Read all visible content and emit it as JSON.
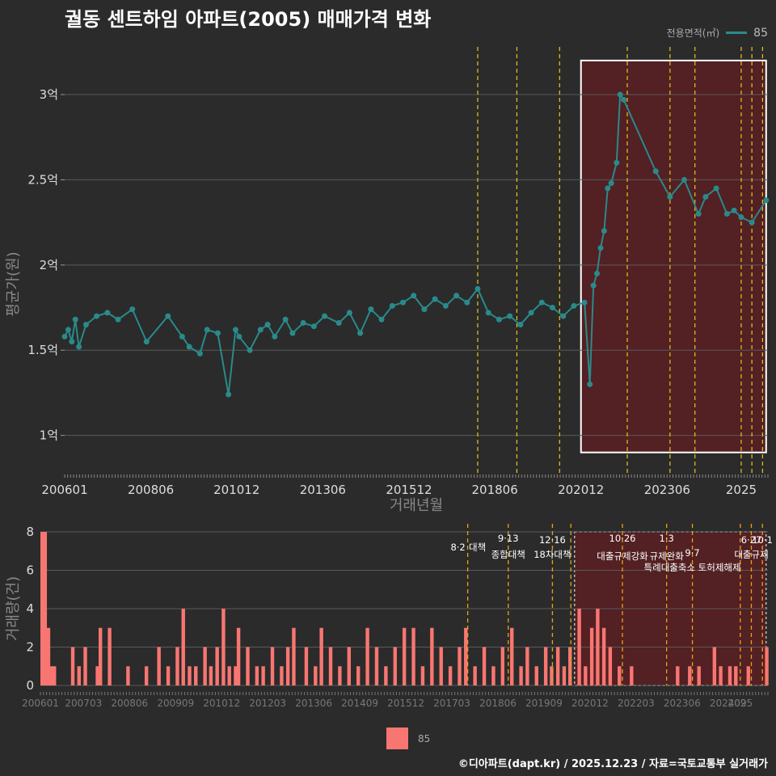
{
  "title": "궐동 센트하임 아파트(2005) 매매가격 변화",
  "legend": {
    "label": "전용면적(㎡)",
    "value": "85"
  },
  "footer": "©디아파트(dapt.kr) / 2025.12.23 / 자료=국토교통부 실거래가",
  "colors": {
    "line": "#2a8a8a",
    "bar": "#f87671",
    "highlight": "#5a1f22",
    "policy": "#e6c619"
  },
  "chart_data": [
    {
      "type": "line",
      "title": "궐동 센트하임 아파트(2005) 매매가격 변화",
      "xlabel": "거래년월",
      "ylabel": "평균가(원)",
      "xlim": [
        2006.0,
        2025.75
      ],
      "ylim": [
        0.78,
        3.28
      ],
      "yticks": [
        {
          "value": 1.0,
          "label": "1억"
        },
        {
          "value": 1.5,
          "label": "1.5억"
        },
        {
          "value": 2.0,
          "label": "2억"
        },
        {
          "value": 2.5,
          "label": "2.5억"
        },
        {
          "value": 3.0,
          "label": "3억"
        }
      ],
      "xticks": [
        {
          "value": 2006.0,
          "label": "200601"
        },
        {
          "value": 2008.42,
          "label": "200806"
        },
        {
          "value": 2010.83,
          "label": "201012"
        },
        {
          "value": 2013.25,
          "label": "201306"
        },
        {
          "value": 2015.67,
          "label": "201512"
        },
        {
          "value": 2018.08,
          "label": "201806"
        },
        {
          "value": 2020.5,
          "label": "202012"
        },
        {
          "value": 2022.92,
          "label": "202306"
        },
        {
          "value": 2025.0,
          "label": "2025"
        }
      ],
      "highlight_range": [
        2020.5,
        2025.7
      ],
      "policy_lines": [
        2017.6,
        2018.7,
        2019.9,
        2021.8,
        2023.0,
        2023.7,
        2025.0,
        2025.3,
        2025.6
      ],
      "series": [
        {
          "name": "85",
          "x": [
            2006.0,
            2006.1,
            2006.2,
            2006.3,
            2006.4,
            2006.6,
            2006.9,
            2007.2,
            2007.5,
            2007.9,
            2008.3,
            2008.9,
            2009.3,
            2009.5,
            2009.8,
            2010.0,
            2010.3,
            2010.6,
            2010.8,
            2010.9,
            2011.2,
            2011.5,
            2011.7,
            2011.9,
            2012.2,
            2012.4,
            2012.7,
            2013.0,
            2013.3,
            2013.7,
            2014.0,
            2014.3,
            2014.6,
            2014.9,
            2015.2,
            2015.5,
            2015.8,
            2016.1,
            2016.4,
            2016.7,
            2017.0,
            2017.3,
            2017.6,
            2017.9,
            2018.2,
            2018.5,
            2018.8,
            2019.1,
            2019.4,
            2019.7,
            2020.0,
            2020.3,
            2020.6,
            2020.75,
            2020.85,
            2020.95,
            2021.05,
            2021.15,
            2021.25,
            2021.35,
            2021.5,
            2021.6,
            2021.7,
            2022.6,
            2023.0,
            2023.4,
            2023.8,
            2024.0,
            2024.3,
            2024.6,
            2024.8,
            2025.0,
            2025.3,
            2025.7
          ],
          "y": [
            1.58,
            1.62,
            1.55,
            1.68,
            1.52,
            1.65,
            1.7,
            1.72,
            1.68,
            1.74,
            1.55,
            1.7,
            1.58,
            1.52,
            1.48,
            1.62,
            1.6,
            1.24,
            1.62,
            1.58,
            1.5,
            1.62,
            1.65,
            1.58,
            1.68,
            1.6,
            1.66,
            1.64,
            1.7,
            1.66,
            1.72,
            1.6,
            1.74,
            1.68,
            1.76,
            1.78,
            1.82,
            1.74,
            1.8,
            1.76,
            1.82,
            1.78,
            1.86,
            1.72,
            1.68,
            1.7,
            1.65,
            1.72,
            1.78,
            1.75,
            1.7,
            1.76,
            1.78,
            1.3,
            1.88,
            1.95,
            2.1,
            2.2,
            2.45,
            2.48,
            2.6,
            3.0,
            2.97,
            2.55,
            2.4,
            2.5,
            2.3,
            2.4,
            2.45,
            2.3,
            2.32,
            2.28,
            2.25,
            2.38
          ]
        }
      ]
    },
    {
      "type": "bar",
      "ylabel": "거래량(건)",
      "xlim": [
        2006.0,
        2025.75
      ],
      "ylim": [
        0,
        8
      ],
      "yticks": [
        0,
        2,
        4,
        6,
        8
      ],
      "xticks": [
        {
          "value": 2006.0,
          "label": "200601"
        },
        {
          "value": 2007.17,
          "label": "200703"
        },
        {
          "value": 2008.42,
          "label": "200806"
        },
        {
          "value": 2009.67,
          "label": "200909"
        },
        {
          "value": 2010.92,
          "label": "201012"
        },
        {
          "value": 2012.17,
          "label": "201203"
        },
        {
          "value": 2013.42,
          "label": "201306"
        },
        {
          "value": 2014.67,
          "label": "201409"
        },
        {
          "value": 2015.92,
          "label": "201512"
        },
        {
          "value": 2017.17,
          "label": "201703"
        },
        {
          "value": 2018.42,
          "label": "201806"
        },
        {
          "value": 2019.67,
          "label": "201909"
        },
        {
          "value": 2020.92,
          "label": "202012"
        },
        {
          "value": 2022.17,
          "label": "202203"
        },
        {
          "value": 2023.42,
          "label": "202306"
        },
        {
          "value": 2024.67,
          "label": "202409"
        },
        {
          "value": 2025.0,
          "label": "2025"
        }
      ],
      "highlight_range": [
        2020.5,
        2025.7
      ],
      "policy_lines": [
        2017.6,
        2018.7,
        2019.9,
        2020.4,
        2021.8,
        2023.0,
        2023.7,
        2025.0,
        2025.3,
        2025.6
      ],
      "policies": [
        {
          "date": "8·2",
          "label": "대책",
          "x": 2017.6
        },
        {
          "date": "9·13",
          "label": "종합대책",
          "x": 2018.7
        },
        {
          "date": "12·16",
          "label": "18차대책",
          "x": 2019.9
        },
        {
          "date": "10·26",
          "label": "대출규제강화",
          "x": 2021.8
        },
        {
          "date": "1·3",
          "label": "규제완화",
          "x": 2023.0
        },
        {
          "date": "9·7",
          "label": "특례대출축소 토허제해제",
          "x": 2023.7
        },
        {
          "date": "6·27",
          "label": "대출규제",
          "x": 2025.3
        },
        {
          "date": "10·1",
          "label": "",
          "x": 2025.6
        }
      ],
      "series": [
        {
          "name": "85",
          "x": [
            2006.0,
            2006.08,
            2006.17,
            2006.25,
            2006.33,
            2006.83,
            2007.0,
            2007.17,
            2007.5,
            2007.58,
            2007.83,
            2008.33,
            2008.83,
            2009.17,
            2009.42,
            2009.67,
            2009.83,
            2010.0,
            2010.17,
            2010.42,
            2010.58,
            2010.75,
            2010.92,
            2011.08,
            2011.25,
            2011.33,
            2011.58,
            2011.83,
            2012.0,
            2012.25,
            2012.5,
            2012.67,
            2012.83,
            2013.17,
            2013.42,
            2013.58,
            2013.83,
            2014.08,
            2014.33,
            2014.58,
            2014.83,
            2015.08,
            2015.33,
            2015.58,
            2015.83,
            2016.08,
            2016.33,
            2016.58,
            2016.83,
            2017.08,
            2017.33,
            2017.5,
            2017.75,
            2018.0,
            2018.25,
            2018.5,
            2018.75,
            2019.0,
            2019.17,
            2019.42,
            2019.67,
            2019.83,
            2020.0,
            2020.17,
            2020.33,
            2020.58,
            2020.75,
            2020.92,
            2021.08,
            2021.25,
            2021.42,
            2021.67,
            2022.0,
            2023.25,
            2023.58,
            2023.83,
            2024.25,
            2024.42,
            2024.67,
            2024.83,
            2025.17,
            2025.67
          ],
          "values": [
            8,
            8,
            3,
            1,
            1,
            2,
            1,
            2,
            1,
            3,
            3,
            1,
            1,
            2,
            1,
            2,
            4,
            1,
            1,
            2,
            1,
            2,
            4,
            1,
            1,
            3,
            2,
            1,
            1,
            2,
            1,
            2,
            3,
            2,
            1,
            3,
            2,
            1,
            2,
            1,
            3,
            2,
            1,
            2,
            3,
            3,
            1,
            3,
            2,
            1,
            2,
            3,
            1,
            2,
            1,
            2,
            3,
            1,
            2,
            1,
            2,
            1,
            2,
            1,
            2,
            4,
            1,
            3,
            4,
            3,
            2,
            1,
            1,
            1,
            1,
            1,
            2,
            1,
            1,
            1,
            1,
            2
          ]
        }
      ]
    }
  ]
}
